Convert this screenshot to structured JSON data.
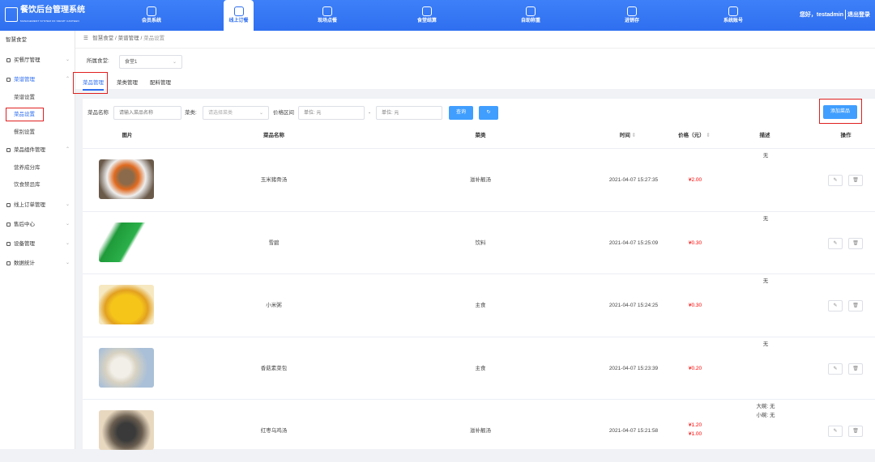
{
  "header": {
    "title": "餐饮后台管理系统",
    "subtitle": "MANAGEMENT SYSTEM OF SMART CANTEEN",
    "logo_text": "智慧食堂",
    "nav": [
      {
        "label": "会员系统",
        "icon": "diamond-icon"
      },
      {
        "label": "线上订餐",
        "icon": "store-icon",
        "active": true
      },
      {
        "label": "现场点餐",
        "icon": "cup-icon"
      },
      {
        "label": "食堂结算",
        "icon": "scan-icon"
      },
      {
        "label": "自助称重",
        "icon": "scale-icon"
      },
      {
        "label": "进销存",
        "icon": "exchange-icon"
      },
      {
        "label": "系统账号",
        "icon": "users-icon"
      }
    ],
    "greeting": "您好，testadmin",
    "logout": "退出登录",
    "accent": "#2f6ff0"
  },
  "sidebar": {
    "title": "智慧食堂",
    "items": [
      {
        "label": "买餐厅管理",
        "icon": "bowl-icon"
      },
      {
        "label": "菜谱管理",
        "icon": "book-icon",
        "expanded": true,
        "children": [
          "菜谱设置",
          "菜品设置",
          "餐别设置"
        ]
      },
      {
        "label": "菜品组件管理",
        "icon": "component-icon",
        "expanded": true,
        "children": [
          "营养成分库",
          "饮食禁忌库"
        ]
      },
      {
        "label": "线上订单管理",
        "icon": "order-icon"
      },
      {
        "label": "售后中心",
        "icon": "service-icon"
      },
      {
        "label": "设备管理",
        "icon": "device-icon"
      },
      {
        "label": "数据统计",
        "icon": "clock-icon"
      }
    ]
  },
  "breadcrumb": [
    "智慧食堂",
    "菜谱管理",
    "菜品设置"
  ],
  "canteen": {
    "label": "所属食堂:",
    "value": "食堂1"
  },
  "tabs": [
    "菜品管理",
    "菜类管理",
    "配料管理"
  ],
  "filters": {
    "name_label": "菜品名称",
    "name_placeholder": "请输入菜品名称",
    "type_label": "菜类:",
    "type_placeholder": "请选择菜类",
    "price_label": "价格区间",
    "min_placeholder": "单位: 元",
    "dash": "-",
    "max_placeholder": "单位: 元",
    "search": "查询",
    "add": "添加菜品"
  },
  "table": {
    "columns": [
      "图片",
      "菜品名称",
      "菜类",
      "时间",
      "价格（元）",
      "描述",
      "操作"
    ],
    "rows": [
      {
        "name": "玉米猪骨汤",
        "type": "滋补靓汤",
        "time": "2021-04-07 15:27:35",
        "price": [
          "¥2.00"
        ],
        "desc": [
          "无"
        ]
      },
      {
        "name": "雪碧",
        "type": "饮料",
        "time": "2021-04-07 15:25:09",
        "price": [
          "¥0.30"
        ],
        "desc": [
          "无"
        ]
      },
      {
        "name": "小米粥",
        "type": "主食",
        "time": "2021-04-07 15:24:25",
        "price": [
          "¥0.30"
        ],
        "desc": [
          "无"
        ]
      },
      {
        "name": "香菇素菜包",
        "type": "主食",
        "time": "2021-04-07 15:23:39",
        "price": [
          "¥0.20"
        ],
        "desc": [
          "无"
        ]
      },
      {
        "name": "红枣乌鸡汤",
        "type": "滋补靓汤",
        "time": "2021-04-07 15:21:58",
        "price": [
          "¥1.20",
          "¥1.00"
        ],
        "desc": [
          "大碗: 无",
          "小碗: 无"
        ]
      }
    ]
  }
}
